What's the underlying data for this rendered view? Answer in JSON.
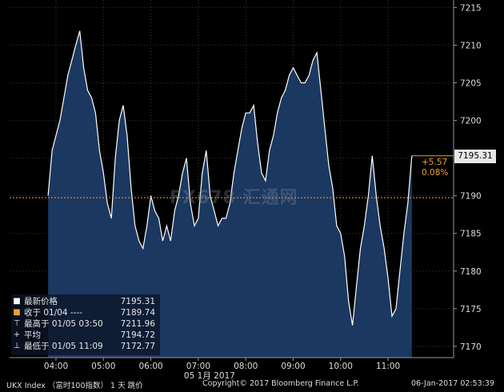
{
  "chart_data": {
    "type": "line",
    "ylim": [
      7168.5,
      7216
    ],
    "y_ticks": [
      7215,
      7210,
      7205,
      7200,
      7195,
      7190,
      7185,
      7180,
      7175,
      7170
    ],
    "x_ticks": [
      "04:00",
      "05:00",
      "06:00",
      "07:00",
      "08:00",
      "09:00",
      "10:00",
      "11:00"
    ],
    "x_axis_date": "05 1月 2017",
    "x": [
      "03:50",
      "03:55",
      "04:00",
      "04:05",
      "04:10",
      "04:15",
      "04:20",
      "04:25",
      "04:30",
      "04:35",
      "04:40",
      "04:45",
      "04:50",
      "04:55",
      "05:00",
      "05:05",
      "05:10",
      "05:15",
      "05:20",
      "05:25",
      "05:30",
      "05:35",
      "05:40",
      "05:45",
      "05:50",
      "05:55",
      "06:00",
      "06:05",
      "06:10",
      "06:15",
      "06:20",
      "06:25",
      "06:30",
      "06:35",
      "06:40",
      "06:45",
      "06:50",
      "06:55",
      "07:00",
      "07:05",
      "07:10",
      "07:15",
      "07:20",
      "07:25",
      "07:30",
      "07:35",
      "07:40",
      "07:45",
      "07:50",
      "07:55",
      "08:00",
      "08:05",
      "08:10",
      "08:15",
      "08:20",
      "08:25",
      "08:30",
      "08:35",
      "08:40",
      "08:45",
      "08:50",
      "08:55",
      "09:00",
      "09:05",
      "09:10",
      "09:15",
      "09:20",
      "09:25",
      "09:30",
      "09:35",
      "09:40",
      "09:45",
      "09:50",
      "09:55",
      "10:00",
      "10:05",
      "10:10",
      "10:15",
      "10:20",
      "10:25",
      "10:30",
      "10:35",
      "10:40",
      "10:45",
      "10:50",
      "10:55",
      "11:00",
      "11:05",
      "11:10",
      "11:15",
      "11:20",
      "11:25",
      "11:30"
    ],
    "values": [
      7190,
      7196,
      7198,
      7200,
      7203,
      7206,
      7208,
      7210,
      7211.9,
      7207,
      7204,
      7203,
      7201,
      7196,
      7193,
      7189,
      7187,
      7195,
      7200,
      7202,
      7198,
      7191,
      7186,
      7184,
      7183,
      7186,
      7190,
      7188,
      7187,
      7184,
      7186,
      7184,
      7188,
      7190,
      7193,
      7195,
      7189,
      7186,
      7187,
      7193,
      7196,
      7190,
      7188,
      7186,
      7187,
      7187,
      7189,
      7193,
      7196,
      7199,
      7201,
      7201,
      7202,
      7197,
      7193,
      7192,
      7196,
      7198,
      7201,
      7203,
      7204,
      7206,
      7207,
      7206,
      7205,
      7205,
      7206,
      7208,
      7209,
      7204,
      7199,
      7194,
      7191,
      7186,
      7185,
      7182,
      7176,
      7172.77,
      7178,
      7183,
      7186,
      7190,
      7195.31,
      7190,
      7186,
      7183,
      7179,
      7174,
      7175,
      7180,
      7185,
      7189,
      7195.31
    ],
    "prev_close": 7189.74,
    "last_price": "7195.31",
    "change": "+5.57",
    "change_pct": "0.08%",
    "colors": {
      "background": "#000000",
      "area_fill": "#1b3860",
      "line": "#ffffff",
      "prev_close_line": "#f0a030",
      "accent": "#f0a030"
    }
  },
  "legend": {
    "last": {
      "label": "最新价格",
      "value": "7195.31"
    },
    "prev_close": {
      "label": "收于 01/04 ----",
      "value": "7189.74"
    },
    "high": {
      "label": "最高于 01/05 03:50",
      "value": "7211.96"
    },
    "average": {
      "label": "平均",
      "value": "7194.72"
    },
    "low": {
      "label": "最低于 01/05 11:09",
      "value": "7172.77"
    }
  },
  "watermark": "FX678 汇通网",
  "footer": {
    "index": "UKX Index （富时100指数） 1 天  跳价",
    "copyright": "Copyright© 2017 Bloomberg Finance L.P.",
    "timestamp": "06-Jan-2017 02:53:39"
  }
}
